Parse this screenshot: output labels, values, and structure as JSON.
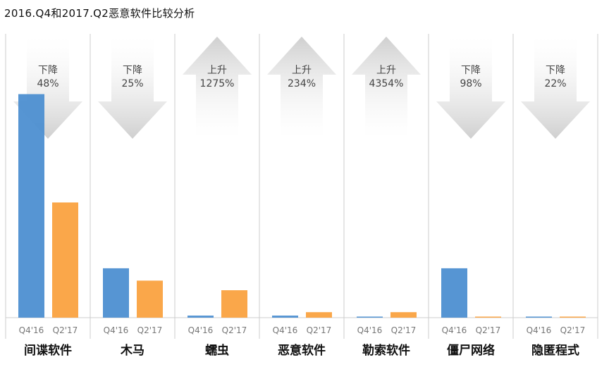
{
  "chart_data": {
    "type": "bar",
    "title": "2016.Q4和2017.Q2恶意软件比较分析",
    "categories": [
      "间谍软件",
      "木马",
      "蠕虫",
      "恶意软件",
      "勒索软件",
      "僵尸网络",
      "隐匿程式"
    ],
    "series": [
      {
        "name": "Q4'16",
        "values": [
          326,
          72,
          3,
          3,
          1,
          72,
          1
        ]
      },
      {
        "name": "Q2'17",
        "values": [
          168,
          54,
          40,
          8,
          8,
          1,
          1
        ]
      }
    ],
    "ylim": [
      0,
      340
    ],
    "bar_colors": [
      "#4d8fd1",
      "#faa74a"
    ],
    "changes": [
      {
        "direction": "down",
        "word": "下降",
        "pct": "48%"
      },
      {
        "direction": "down",
        "word": "下降",
        "pct": "25%"
      },
      {
        "direction": "up",
        "word": "上升",
        "pct": "1275%"
      },
      {
        "direction": "up",
        "word": "上升",
        "pct": "234%"
      },
      {
        "direction": "up",
        "word": "上升",
        "pct": "4354%"
      },
      {
        "direction": "down",
        "word": "下降",
        "pct": "98%"
      },
      {
        "direction": "down",
        "word": "下降",
        "pct": "22%"
      }
    ],
    "grid": false,
    "legend": "none"
  }
}
